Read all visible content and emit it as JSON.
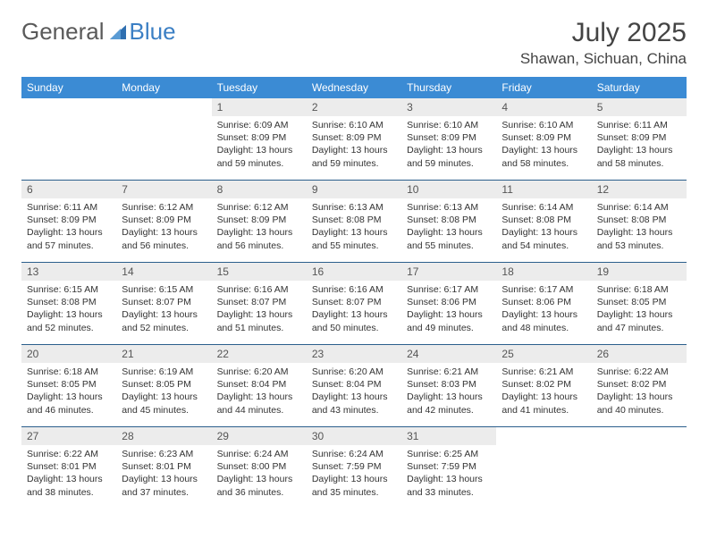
{
  "brand": {
    "part1": "General",
    "part2": "Blue"
  },
  "title": "July 2025",
  "location": "Shawan, Sichuan, China",
  "colors": {
    "header_bg": "#3b8bd4",
    "header_text": "#ffffff",
    "separator": "#2b5f8c",
    "daynum_bg": "#ececec",
    "text": "#333333",
    "logo_gray": "#5a5a5a",
    "logo_blue": "#3b7fc4"
  },
  "day_headers": [
    "Sunday",
    "Monday",
    "Tuesday",
    "Wednesday",
    "Thursday",
    "Friday",
    "Saturday"
  ],
  "weeks": [
    {
      "nums": [
        "",
        "",
        "1",
        "2",
        "3",
        "4",
        "5"
      ],
      "cells": [
        null,
        null,
        {
          "sunrise": "Sunrise: 6:09 AM",
          "sunset": "Sunset: 8:09 PM",
          "day1": "Daylight: 13 hours",
          "day2": "and 59 minutes."
        },
        {
          "sunrise": "Sunrise: 6:10 AM",
          "sunset": "Sunset: 8:09 PM",
          "day1": "Daylight: 13 hours",
          "day2": "and 59 minutes."
        },
        {
          "sunrise": "Sunrise: 6:10 AM",
          "sunset": "Sunset: 8:09 PM",
          "day1": "Daylight: 13 hours",
          "day2": "and 59 minutes."
        },
        {
          "sunrise": "Sunrise: 6:10 AM",
          "sunset": "Sunset: 8:09 PM",
          "day1": "Daylight: 13 hours",
          "day2": "and 58 minutes."
        },
        {
          "sunrise": "Sunrise: 6:11 AM",
          "sunset": "Sunset: 8:09 PM",
          "day1": "Daylight: 13 hours",
          "day2": "and 58 minutes."
        }
      ]
    },
    {
      "nums": [
        "6",
        "7",
        "8",
        "9",
        "10",
        "11",
        "12"
      ],
      "cells": [
        {
          "sunrise": "Sunrise: 6:11 AM",
          "sunset": "Sunset: 8:09 PM",
          "day1": "Daylight: 13 hours",
          "day2": "and 57 minutes."
        },
        {
          "sunrise": "Sunrise: 6:12 AM",
          "sunset": "Sunset: 8:09 PM",
          "day1": "Daylight: 13 hours",
          "day2": "and 56 minutes."
        },
        {
          "sunrise": "Sunrise: 6:12 AM",
          "sunset": "Sunset: 8:09 PM",
          "day1": "Daylight: 13 hours",
          "day2": "and 56 minutes."
        },
        {
          "sunrise": "Sunrise: 6:13 AM",
          "sunset": "Sunset: 8:08 PM",
          "day1": "Daylight: 13 hours",
          "day2": "and 55 minutes."
        },
        {
          "sunrise": "Sunrise: 6:13 AM",
          "sunset": "Sunset: 8:08 PM",
          "day1": "Daylight: 13 hours",
          "day2": "and 55 minutes."
        },
        {
          "sunrise": "Sunrise: 6:14 AM",
          "sunset": "Sunset: 8:08 PM",
          "day1": "Daylight: 13 hours",
          "day2": "and 54 minutes."
        },
        {
          "sunrise": "Sunrise: 6:14 AM",
          "sunset": "Sunset: 8:08 PM",
          "day1": "Daylight: 13 hours",
          "day2": "and 53 minutes."
        }
      ]
    },
    {
      "nums": [
        "13",
        "14",
        "15",
        "16",
        "17",
        "18",
        "19"
      ],
      "cells": [
        {
          "sunrise": "Sunrise: 6:15 AM",
          "sunset": "Sunset: 8:08 PM",
          "day1": "Daylight: 13 hours",
          "day2": "and 52 minutes."
        },
        {
          "sunrise": "Sunrise: 6:15 AM",
          "sunset": "Sunset: 8:07 PM",
          "day1": "Daylight: 13 hours",
          "day2": "and 52 minutes."
        },
        {
          "sunrise": "Sunrise: 6:16 AM",
          "sunset": "Sunset: 8:07 PM",
          "day1": "Daylight: 13 hours",
          "day2": "and 51 minutes."
        },
        {
          "sunrise": "Sunrise: 6:16 AM",
          "sunset": "Sunset: 8:07 PM",
          "day1": "Daylight: 13 hours",
          "day2": "and 50 minutes."
        },
        {
          "sunrise": "Sunrise: 6:17 AM",
          "sunset": "Sunset: 8:06 PM",
          "day1": "Daylight: 13 hours",
          "day2": "and 49 minutes."
        },
        {
          "sunrise": "Sunrise: 6:17 AM",
          "sunset": "Sunset: 8:06 PM",
          "day1": "Daylight: 13 hours",
          "day2": "and 48 minutes."
        },
        {
          "sunrise": "Sunrise: 6:18 AM",
          "sunset": "Sunset: 8:05 PM",
          "day1": "Daylight: 13 hours",
          "day2": "and 47 minutes."
        }
      ]
    },
    {
      "nums": [
        "20",
        "21",
        "22",
        "23",
        "24",
        "25",
        "26"
      ],
      "cells": [
        {
          "sunrise": "Sunrise: 6:18 AM",
          "sunset": "Sunset: 8:05 PM",
          "day1": "Daylight: 13 hours",
          "day2": "and 46 minutes."
        },
        {
          "sunrise": "Sunrise: 6:19 AM",
          "sunset": "Sunset: 8:05 PM",
          "day1": "Daylight: 13 hours",
          "day2": "and 45 minutes."
        },
        {
          "sunrise": "Sunrise: 6:20 AM",
          "sunset": "Sunset: 8:04 PM",
          "day1": "Daylight: 13 hours",
          "day2": "and 44 minutes."
        },
        {
          "sunrise": "Sunrise: 6:20 AM",
          "sunset": "Sunset: 8:04 PM",
          "day1": "Daylight: 13 hours",
          "day2": "and 43 minutes."
        },
        {
          "sunrise": "Sunrise: 6:21 AM",
          "sunset": "Sunset: 8:03 PM",
          "day1": "Daylight: 13 hours",
          "day2": "and 42 minutes."
        },
        {
          "sunrise": "Sunrise: 6:21 AM",
          "sunset": "Sunset: 8:02 PM",
          "day1": "Daylight: 13 hours",
          "day2": "and 41 minutes."
        },
        {
          "sunrise": "Sunrise: 6:22 AM",
          "sunset": "Sunset: 8:02 PM",
          "day1": "Daylight: 13 hours",
          "day2": "and 40 minutes."
        }
      ]
    },
    {
      "nums": [
        "27",
        "28",
        "29",
        "30",
        "31",
        "",
        ""
      ],
      "cells": [
        {
          "sunrise": "Sunrise: 6:22 AM",
          "sunset": "Sunset: 8:01 PM",
          "day1": "Daylight: 13 hours",
          "day2": "and 38 minutes."
        },
        {
          "sunrise": "Sunrise: 6:23 AM",
          "sunset": "Sunset: 8:01 PM",
          "day1": "Daylight: 13 hours",
          "day2": "and 37 minutes."
        },
        {
          "sunrise": "Sunrise: 6:24 AM",
          "sunset": "Sunset: 8:00 PM",
          "day1": "Daylight: 13 hours",
          "day2": "and 36 minutes."
        },
        {
          "sunrise": "Sunrise: 6:24 AM",
          "sunset": "Sunset: 7:59 PM",
          "day1": "Daylight: 13 hours",
          "day2": "and 35 minutes."
        },
        {
          "sunrise": "Sunrise: 6:25 AM",
          "sunset": "Sunset: 7:59 PM",
          "day1": "Daylight: 13 hours",
          "day2": "and 33 minutes."
        },
        null,
        null
      ]
    }
  ]
}
